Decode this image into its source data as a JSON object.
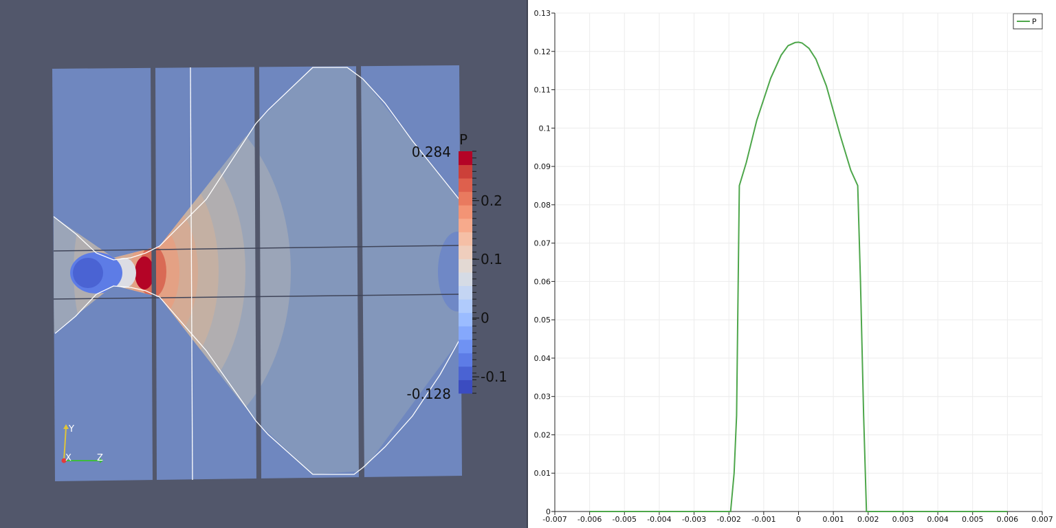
{
  "render_view": {
    "colorbar": {
      "title": "P",
      "max_label": "0.284",
      "min_label": "-0.128",
      "range": [
        -0.128,
        0.284
      ],
      "tick_labels": [
        "0.2",
        "0.1",
        "0",
        "-0.1"
      ],
      "tick_values": [
        0.2,
        0.1,
        0,
        -0.1
      ],
      "colors_bottom_to_top": [
        "#3b4cc0",
        "#4a63d3",
        "#5d7ce6",
        "#6f92f3",
        "#85a8fc",
        "#9bbcff",
        "#b0cbfc",
        "#c4d5f3",
        "#d5dbe5",
        "#e3d9d3",
        "#efcebd",
        "#f5bfa6",
        "#f7aa8c",
        "#f39475",
        "#e97a5f",
        "#de604d",
        "#cc4039",
        "#b40426"
      ]
    },
    "axes_triad": {
      "x_label": "X",
      "y_label": "Y",
      "z_label": "Z"
    },
    "colors": {
      "background": "#52576b",
      "domain": "#6f87bf",
      "shock_region": "#8397bb",
      "contour_line": "#ffffff"
    }
  },
  "plot_view": {
    "legend": [
      "P"
    ],
    "series_color": "#4da64a"
  },
  "chart_data": {
    "type": "line",
    "title": "",
    "xlabel": "",
    "ylabel": "",
    "xlim": [
      -0.007,
      0.007
    ],
    "ylim": [
      0,
      0.13
    ],
    "grid": true,
    "legend_position": "top-right",
    "x_ticks": [
      -0.007,
      -0.006,
      -0.005,
      -0.004,
      -0.003,
      -0.002,
      -0.001,
      0,
      0.001,
      0.002,
      0.003,
      0.004,
      0.005,
      0.006,
      0.007
    ],
    "x_tick_labels": [
      "-0.007",
      "-0.006",
      "-0.005",
      "-0.004",
      "-0.003",
      "-0.002",
      "-0.001",
      "0",
      "0.001",
      "0.002",
      "0.003",
      "0.004",
      "0.005",
      "0.006",
      "0.007"
    ],
    "y_ticks": [
      0,
      0.01,
      0.02,
      0.03,
      0.04,
      0.05,
      0.06,
      0.07,
      0.08,
      0.09,
      0.1,
      0.11,
      0.12,
      0.13
    ],
    "y_tick_labels": [
      "0",
      "0.01",
      "0.02",
      "0.03",
      "0.04",
      "0.05",
      "0.06",
      "0.07",
      "0.08",
      "0.09",
      "0.1",
      "0.11",
      "0.12",
      "0.13"
    ],
    "series": [
      {
        "name": "P",
        "x": [
          -0.006,
          -0.002,
          -0.00195,
          -0.00185,
          -0.00178,
          -0.0017,
          -0.0015,
          -0.0012,
          -0.0008,
          -0.0005,
          -0.0003,
          -0.0001,
          0,
          0.0001,
          0.0003,
          0.0005,
          0.0008,
          0.0012,
          0.0015,
          0.0017,
          0.00178,
          0.00187,
          0.00195,
          0.002,
          0.006
        ],
        "y": [
          0,
          0,
          0.0,
          0.01,
          0.025,
          0.085,
          0.091,
          0.102,
          0.113,
          0.119,
          0.1215,
          0.1223,
          0.1224,
          0.1222,
          0.1208,
          0.118,
          0.111,
          0.098,
          0.089,
          0.085,
          0.06,
          0.025,
          0.0,
          0,
          0
        ]
      }
    ]
  }
}
